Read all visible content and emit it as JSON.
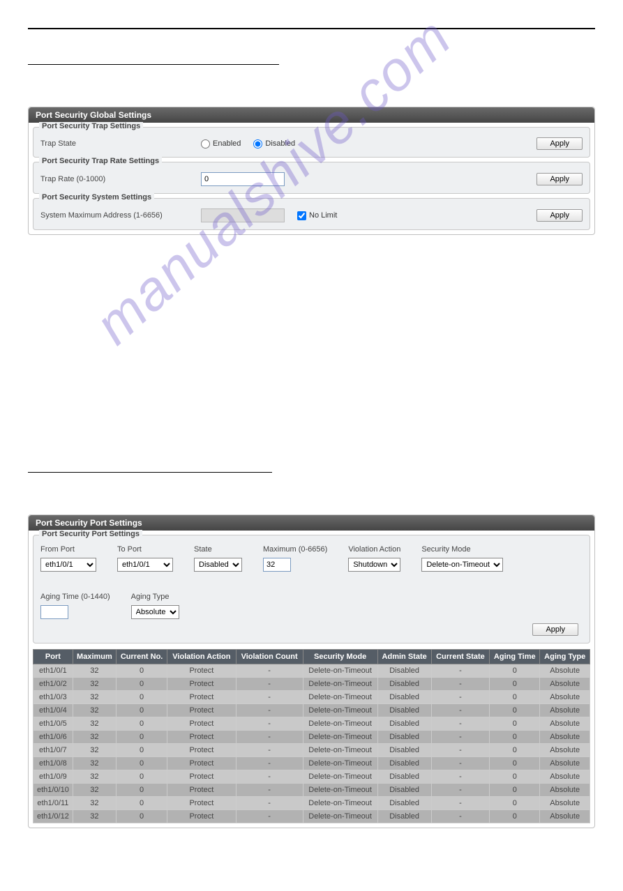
{
  "watermark": "manualshive.com",
  "panel1": {
    "title": "Port Security Global Settings",
    "apply_label": "Apply",
    "trap_settings": {
      "legend": "Port Security Trap Settings",
      "label": "Trap State",
      "opt_enabled": "Enabled",
      "opt_disabled": "Disabled",
      "selected": "disabled"
    },
    "trap_rate": {
      "legend": "Port Security Trap Rate Settings",
      "label": "Trap Rate (0-1000)",
      "value": "0"
    },
    "system": {
      "legend": "Port Security System Settings",
      "label": "System Maximum Address (1-6656)",
      "value": "",
      "nolimit_label": "No Limit",
      "nolimit_checked": true
    }
  },
  "panel2": {
    "title": "Port Security Port Settings",
    "legend": "Port Security Port Settings",
    "apply_label": "Apply",
    "form": {
      "from_port_label": "From Port",
      "to_port_label": "To Port",
      "state_label": "State",
      "maximum_label": "Maximum (0-6656)",
      "violation_label": "Violation Action",
      "secmode_label": "Security Mode",
      "aging_time_label": "Aging Time (0-1440)",
      "aging_type_label": "Aging Type",
      "from_port": "eth1/0/1",
      "to_port": "eth1/0/1",
      "state": "Disabled",
      "maximum": "32",
      "violation": "Shutdown",
      "secmode": "Delete-on-Timeout",
      "aging_time": "",
      "aging_type": "Absolute"
    },
    "table": {
      "columns": [
        "Port",
        "Maximum",
        "Current No.",
        "Violation Action",
        "Violation Count",
        "Security Mode",
        "Admin State",
        "Current State",
        "Aging Time",
        "Aging Type"
      ],
      "rows": [
        [
          "eth1/0/1",
          "32",
          "0",
          "Protect",
          "-",
          "Delete-on-Timeout",
          "Disabled",
          "-",
          "0",
          "Absolute"
        ],
        [
          "eth1/0/2",
          "32",
          "0",
          "Protect",
          "-",
          "Delete-on-Timeout",
          "Disabled",
          "-",
          "0",
          "Absolute"
        ],
        [
          "eth1/0/3",
          "32",
          "0",
          "Protect",
          "-",
          "Delete-on-Timeout",
          "Disabled",
          "-",
          "0",
          "Absolute"
        ],
        [
          "eth1/0/4",
          "32",
          "0",
          "Protect",
          "-",
          "Delete-on-Timeout",
          "Disabled",
          "-",
          "0",
          "Absolute"
        ],
        [
          "eth1/0/5",
          "32",
          "0",
          "Protect",
          "-",
          "Delete-on-Timeout",
          "Disabled",
          "-",
          "0",
          "Absolute"
        ],
        [
          "eth1/0/6",
          "32",
          "0",
          "Protect",
          "-",
          "Delete-on-Timeout",
          "Disabled",
          "-",
          "0",
          "Absolute"
        ],
        [
          "eth1/0/7",
          "32",
          "0",
          "Protect",
          "-",
          "Delete-on-Timeout",
          "Disabled",
          "-",
          "0",
          "Absolute"
        ],
        [
          "eth1/0/8",
          "32",
          "0",
          "Protect",
          "-",
          "Delete-on-Timeout",
          "Disabled",
          "-",
          "0",
          "Absolute"
        ],
        [
          "eth1/0/9",
          "32",
          "0",
          "Protect",
          "-",
          "Delete-on-Timeout",
          "Disabled",
          "-",
          "0",
          "Absolute"
        ],
        [
          "eth1/0/10",
          "32",
          "0",
          "Protect",
          "-",
          "Delete-on-Timeout",
          "Disabled",
          "-",
          "0",
          "Absolute"
        ],
        [
          "eth1/0/11",
          "32",
          "0",
          "Protect",
          "-",
          "Delete-on-Timeout",
          "Disabled",
          "-",
          "0",
          "Absolute"
        ],
        [
          "eth1/0/12",
          "32",
          "0",
          "Protect",
          "-",
          "Delete-on-Timeout",
          "Disabled",
          "-",
          "0",
          "Absolute"
        ]
      ]
    }
  },
  "colors": {
    "header_grad_top": "#6a6a6a",
    "header_grad_bottom": "#454545",
    "fieldset_bg": "#eef0f2",
    "th_bg": "#555d66",
    "row_odd": "#c9c9c9",
    "row_even": "#b2b2b2"
  }
}
